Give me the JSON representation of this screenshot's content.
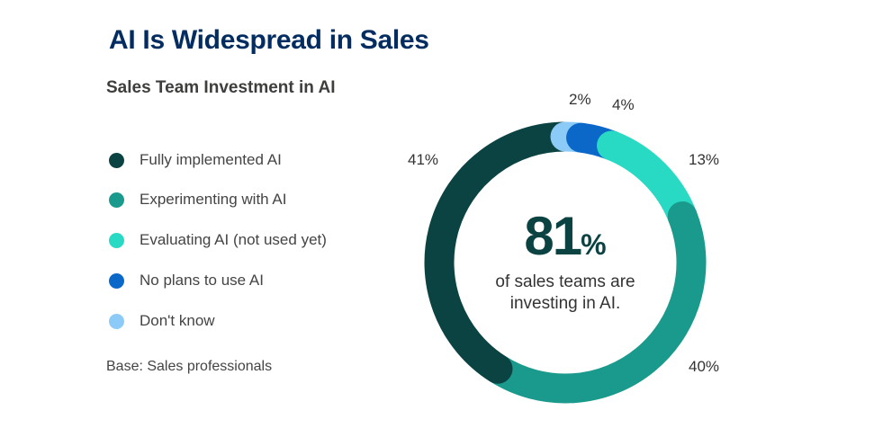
{
  "chart_data": {
    "type": "donut",
    "title": "AI Is Widespread in Sales",
    "subtitle": "Sales Team Investment in AI",
    "categories": [
      "Don't know",
      "No plans to use AI",
      "Evaluating AI (not used yet)",
      "Experimenting with AI",
      "Fully implemented AI"
    ],
    "values": [
      2,
      4,
      13,
      40,
      41
    ],
    "value_labels": [
      "2%",
      "4%",
      "13%",
      "40%",
      "41%"
    ],
    "colors": [
      "#8ccbf7",
      "#0b68c8",
      "#28dac4",
      "#1a9a8c",
      "#0b4343"
    ],
    "legend": [
      {
        "label": "Fully implemented AI",
        "color": "#0b4343"
      },
      {
        "label": "Experimenting with AI",
        "color": "#1a9a8c"
      },
      {
        "label": "Evaluating AI (not used yet)",
        "color": "#28dac4"
      },
      {
        "label": "No plans to use AI",
        "color": "#0b68c8"
      },
      {
        "label": "Don't know",
        "color": "#8ccbf7"
      }
    ],
    "legend_placement": "left",
    "center": {
      "value": "81",
      "unit": "%",
      "text_line1": "of sales teams are",
      "text_line2": "investing in AI."
    },
    "note": "Base: Sales professionals"
  }
}
